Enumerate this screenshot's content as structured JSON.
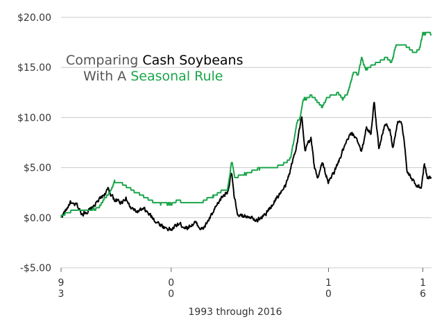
{
  "chart_data": {
    "type": "line",
    "title_parts": {
      "line1_a": "Comparing ",
      "line1_b": "Cash Soybeans",
      "line2_a": "With A ",
      "line2_b": "Seasonal Rule"
    },
    "xlabel": "1993 through 2016",
    "ylabel": "",
    "xlim": [
      1993.0,
      2016.55
    ],
    "ylim": [
      -5,
      20
    ],
    "y_ticks": [
      {
        "value": 20,
        "label": "$20.00"
      },
      {
        "value": 15,
        "label": "$15.00"
      },
      {
        "value": 10,
        "label": "$10.00"
      },
      {
        "value": 5,
        "label": "$5.00"
      },
      {
        "value": 0,
        "label": "$0.00"
      },
      {
        "value": -5,
        "label": "-$5.00"
      }
    ],
    "x_ticks": [
      {
        "value": 1993.0,
        "line1": "9",
        "line2": "3"
      },
      {
        "value": 2000.0,
        "line1": "0",
        "line2": "0"
      },
      {
        "value": 2010.0,
        "line1": "1",
        "line2": "0"
      },
      {
        "value": 2016.0,
        "line1": "1",
        "line2": "6"
      }
    ],
    "grid": {
      "horizontal": true,
      "vertical": false
    },
    "colors": {
      "black": "#000000",
      "green": "#1aa54b",
      "grid": "#c8c8c8",
      "text": "#333333"
    },
    "series": [
      {
        "name": "Cash Soybeans",
        "color": "#000000",
        "x": [
          1993.0,
          1993.3,
          1993.6,
          1993.75,
          1994.0,
          1994.3,
          1994.6,
          1994.9,
          1995.2,
          1995.5,
          1996.0,
          1996.4,
          1996.8,
          1997.1,
          1997.4,
          1997.8,
          1998.3,
          1999.0,
          1999.5,
          2000.0,
          2000.5,
          2001.0,
          2001.5,
          2002.0,
          2002.6,
          2003.2,
          2003.6,
          2003.85,
          2004.0,
          2004.3,
          2004.6,
          2005.0,
          2005.5,
          2006.0,
          2006.5,
          2006.9,
          2007.3,
          2007.7,
          2008.0,
          2008.3,
          2008.5,
          2008.7,
          2008.9,
          2009.1,
          2009.3,
          2009.6,
          2010.0,
          2010.5,
          2011.0,
          2011.4,
          2011.8,
          2012.1,
          2012.4,
          2012.7,
          2012.9,
          2013.2,
          2013.6,
          2013.9,
          2014.1,
          2014.4,
          2014.6,
          2014.8,
          2015.0,
          2015.3,
          2015.6,
          2015.9,
          2016.1,
          2016.3,
          2016.55
        ],
        "y": [
          0.1,
          0.7,
          1.6,
          1.2,
          1.3,
          0.4,
          0.6,
          0.8,
          1.4,
          1.9,
          2.8,
          1.8,
          1.5,
          2.0,
          1.0,
          0.6,
          0.8,
          -0.3,
          -0.9,
          -1.2,
          -0.6,
          -1.0,
          -0.5,
          -1.2,
          0.3,
          2.0,
          2.7,
          4.5,
          2.0,
          0.0,
          0.2,
          0.2,
          -0.2,
          0.3,
          1.5,
          2.4,
          3.2,
          5.5,
          7.5,
          10.0,
          6.5,
          7.5,
          8.0,
          5.0,
          4.0,
          5.5,
          3.5,
          5.0,
          7.0,
          8.3,
          8.0,
          6.5,
          9.0,
          8.5,
          11.5,
          7.0,
          9.5,
          8.7,
          7.0,
          9.5,
          9.8,
          8.0,
          4.5,
          3.8,
          3.3,
          3.0,
          5.5,
          3.8,
          4.2
        ]
      },
      {
        "name": "Seasonal Rule",
        "color": "#1aa54b",
        "x": [
          1993.0,
          1993.4,
          1993.8,
          1994.4,
          1994.9,
          1995.4,
          1995.7,
          1996.1,
          1996.4,
          1996.8,
          1997.3,
          1997.7,
          1998.1,
          1998.5,
          1999.0,
          1999.5,
          2000.0,
          2000.4,
          2000.9,
          2001.4,
          2001.9,
          2002.3,
          2002.8,
          2003.3,
          2003.6,
          2003.85,
          2004.05,
          2004.4,
          2004.9,
          2005.4,
          2005.9,
          2006.4,
          2006.9,
          2007.3,
          2007.6,
          2007.9,
          2008.0,
          2008.2,
          2008.4,
          2008.6,
          2008.9,
          2009.2,
          2009.6,
          2009.9,
          2010.2,
          2010.6,
          2010.9,
          2011.2,
          2011.6,
          2011.9,
          2012.1,
          2012.35,
          2012.55,
          2012.8,
          2013.1,
          2013.4,
          2013.7,
          2014.0,
          2014.3,
          2014.6,
          2014.9,
          2015.2,
          2015.5,
          2015.8,
          2016.0,
          2016.15,
          2016.3,
          2016.55
        ],
        "y": [
          0.1,
          0.5,
          0.8,
          0.7,
          0.8,
          1.0,
          1.8,
          2.5,
          3.6,
          3.5,
          3.0,
          2.5,
          2.3,
          1.9,
          1.5,
          1.4,
          1.4,
          1.7,
          1.5,
          1.4,
          1.5,
          1.9,
          2.2,
          2.7,
          2.9,
          5.7,
          4.0,
          4.2,
          4.5,
          4.8,
          5.0,
          4.9,
          5.2,
          5.5,
          6.0,
          8.5,
          9.5,
          10.0,
          11.8,
          11.9,
          12.2,
          11.8,
          11.0,
          12.0,
          12.2,
          12.5,
          11.9,
          12.3,
          14.5,
          14.3,
          16.0,
          14.8,
          14.9,
          15.3,
          15.4,
          15.8,
          16.0,
          15.5,
          17.2,
          17.3,
          17.2,
          16.8,
          16.4,
          16.9,
          18.4,
          18.4,
          18.5,
          18.3
        ]
      }
    ]
  }
}
